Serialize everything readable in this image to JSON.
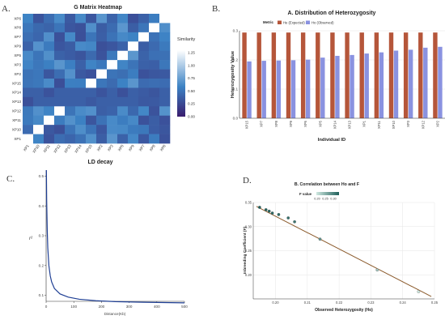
{
  "panel_labels": {
    "a": "A.",
    "b": "B.",
    "c": "C.",
    "d": "D."
  },
  "chart_data": [
    {
      "type": "heatmap",
      "title": "G Matrix Heatmap",
      "legend_title": "Similarity",
      "legend_ticks": [
        "1.25",
        "1.00",
        "0.75",
        "0.50",
        "0.25",
        "0.00"
      ],
      "row_labels": [
        "XP6",
        "XP8",
        "XP7",
        "XP9",
        "XP5",
        "XP3",
        "XP2",
        "XP15",
        "XP14",
        "XP13",
        "XP12",
        "XP11",
        "XP10",
        "XP1"
      ],
      "col_labels": [
        "XP1",
        "XP10",
        "XP11",
        "XP12",
        "XP13",
        "XP14",
        "XP15",
        "XP2",
        "XP3",
        "XP5",
        "XP9",
        "XP7",
        "XP8",
        "XP6"
      ],
      "colors": {
        "low": "#3a1d6e",
        "mid": "#3c82c4",
        "high": "#ffffff"
      }
    },
    {
      "type": "bar",
      "title": "A. Distribution of Heterozygosity",
      "legend_title": "Metric",
      "legend_position": "top",
      "xlabel": "Individual ID",
      "ylabel": "Heterozygosity Value",
      "categories": [
        "XP15",
        "XP7",
        "XP8",
        "XP9",
        "XP6",
        "XP5",
        "XP14",
        "XP13",
        "XP1",
        "XP11",
        "XP10",
        "XP3",
        "XP12",
        "XP2"
      ],
      "ylim": [
        0,
        0.3
      ],
      "yticks": [
        "0.0",
        "0.1",
        "0.2",
        "0.3"
      ],
      "series": [
        {
          "name": "He (Expected)",
          "color": "#b5563a",
          "values": [
            0.294,
            0.294,
            0.294,
            0.294,
            0.294,
            0.294,
            0.294,
            0.294,
            0.294,
            0.294,
            0.294,
            0.294,
            0.294,
            0.294
          ]
        },
        {
          "name": "Ho (Observed)",
          "color": "#8a92e0",
          "values": [
            0.195,
            0.197,
            0.198,
            0.199,
            0.201,
            0.208,
            0.214,
            0.217,
            0.222,
            0.226,
            0.232,
            0.235,
            0.242,
            0.245
          ]
        }
      ]
    },
    {
      "type": "line",
      "title": "LD decay",
      "xlabel": "Distance(Kb)",
      "ylabel": "r²",
      "xlim": [
        0,
        500
      ],
      "ylim": [
        0.08,
        0.52
      ],
      "xticks": [
        "0",
        "100",
        "200",
        "300",
        "400",
        "500"
      ],
      "yticks": [
        "0.1",
        "0.2",
        "0.3",
        "0.4",
        "0.5"
      ],
      "x": [
        1,
        2,
        4,
        6,
        10,
        15,
        20,
        30,
        50,
        80,
        120,
        180,
        250,
        350,
        500
      ],
      "y": [
        0.52,
        0.42,
        0.32,
        0.26,
        0.2,
        0.165,
        0.145,
        0.123,
        0.105,
        0.094,
        0.087,
        0.082,
        0.079,
        0.077,
        0.075
      ],
      "color": "#1f3f94"
    },
    {
      "type": "scatter",
      "title": "B. Correlation between Ho and F",
      "legend_title": "F value",
      "legend_ticks": [
        "0.20",
        "0.25",
        "0.30"
      ],
      "xlabel": "Observed Heterozygosity (Ho)",
      "ylabel": "Inbreeding Coefficient (F)",
      "xlim": [
        0.193,
        0.25
      ],
      "ylim": [
        0.15,
        0.35
      ],
      "xticks": [
        "0.20",
        "0.21",
        "0.22",
        "0.23",
        "0.24",
        "0.25"
      ],
      "yticks": [
        "0.20",
        "0.25",
        "0.30",
        "0.35"
      ],
      "x": [
        0.195,
        0.197,
        0.198,
        0.199,
        0.201,
        0.204,
        0.206,
        0.214,
        0.232,
        0.245
      ],
      "y": [
        0.34,
        0.335,
        0.332,
        0.328,
        0.325,
        0.318,
        0.31,
        0.274,
        0.21,
        0.165
      ],
      "fit_line": {
        "x": [
          0.194,
          0.249
        ],
        "y": [
          0.342,
          0.155
        ],
        "color": "#8b5a2b"
      },
      "colors": {
        "low": "#cfe8e0",
        "high": "#1f5f5a"
      }
    }
  ]
}
